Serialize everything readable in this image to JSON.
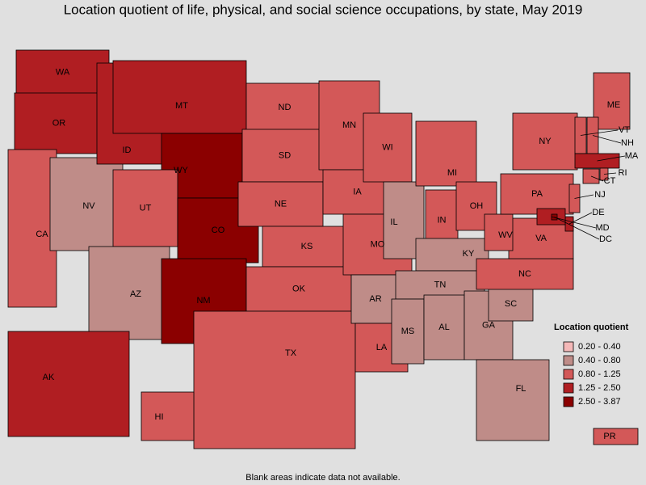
{
  "title": "Location quotient of life, physical, and social science occupations, by state, May 2019",
  "footnote": "Blank areas indicate data not available.",
  "legend": {
    "title": "Location quotient",
    "items": [
      {
        "label": "0.20 - 0.40",
        "color": "#f4b8b8"
      },
      {
        "label": "0.40 - 0.80",
        "color": "#bf8c88"
      },
      {
        "label": "0.80 - 1.25",
        "color": "#d35858"
      },
      {
        "label": "1.25 - 2.50",
        "color": "#b01e22"
      },
      {
        "label": "2.50 - 3.87",
        "color": "#8b0000"
      }
    ]
  },
  "states": [
    {
      "label": "WA",
      "range": "1.25 - 2.50"
    },
    {
      "label": "OR",
      "range": "1.25 - 2.50"
    },
    {
      "label": "CA",
      "range": "0.80 - 1.25"
    },
    {
      "label": "NV",
      "range": "0.40 - 0.80"
    },
    {
      "label": "ID",
      "range": "1.25 - 2.50"
    },
    {
      "label": "MT",
      "range": "1.25 - 2.50"
    },
    {
      "label": "WY",
      "range": "2.50 - 3.87"
    },
    {
      "label": "UT",
      "range": "0.80 - 1.25"
    },
    {
      "label": "AZ",
      "range": "0.40 - 0.80"
    },
    {
      "label": "CO",
      "range": "2.50 - 3.87"
    },
    {
      "label": "NM",
      "range": "2.50 - 3.87"
    },
    {
      "label": "ND",
      "range": "0.80 - 1.25"
    },
    {
      "label": "SD",
      "range": "0.80 - 1.25"
    },
    {
      "label": "NE",
      "range": "0.80 - 1.25"
    },
    {
      "label": "KS",
      "range": "0.80 - 1.25"
    },
    {
      "label": "OK",
      "range": "0.80 - 1.25"
    },
    {
      "label": "TX",
      "range": "0.80 - 1.25"
    },
    {
      "label": "MN",
      "range": "0.80 - 1.25"
    },
    {
      "label": "IA",
      "range": "0.80 - 1.25"
    },
    {
      "label": "MO",
      "range": "0.80 - 1.25"
    },
    {
      "label": "AR",
      "range": "0.40 - 0.80"
    },
    {
      "label": "LA",
      "range": "0.80 - 1.25"
    },
    {
      "label": "WI",
      "range": "0.80 - 1.25"
    },
    {
      "label": "IL",
      "range": "0.40 - 0.80"
    },
    {
      "label": "MI",
      "range": "0.80 - 1.25"
    },
    {
      "label": "IN",
      "range": "0.80 - 1.25"
    },
    {
      "label": "OH",
      "range": "0.80 - 1.25"
    },
    {
      "label": "KY",
      "range": "0.40 - 0.80"
    },
    {
      "label": "TN",
      "range": "0.40 - 0.80"
    },
    {
      "label": "MS",
      "range": "0.40 - 0.80"
    },
    {
      "label": "AL",
      "range": "0.40 - 0.80"
    },
    {
      "label": "GA",
      "range": "0.40 - 0.80"
    },
    {
      "label": "FL",
      "range": "0.40 - 0.80"
    },
    {
      "label": "SC",
      "range": "0.40 - 0.80"
    },
    {
      "label": "NC",
      "range": "0.80 - 1.25"
    },
    {
      "label": "VA",
      "range": "0.80 - 1.25"
    },
    {
      "label": "WV",
      "range": "0.80 - 1.25"
    },
    {
      "label": "PA",
      "range": "0.80 - 1.25"
    },
    {
      "label": "NY",
      "range": "0.80 - 1.25"
    },
    {
      "label": "ME",
      "range": "0.80 - 1.25"
    },
    {
      "label": "VT",
      "range": "0.80 - 1.25"
    },
    {
      "label": "NH",
      "range": "0.80 - 1.25"
    },
    {
      "label": "MA",
      "range": "1.25 - 2.50"
    },
    {
      "label": "CT",
      "range": "0.80 - 1.25"
    },
    {
      "label": "RI",
      "range": "0.80 - 1.25"
    },
    {
      "label": "NJ",
      "range": "0.80 - 1.25"
    },
    {
      "label": "DE",
      "range": "1.25 - 2.50"
    },
    {
      "label": "MD",
      "range": "1.25 - 2.50"
    },
    {
      "label": "DC",
      "range": "2.50 - 3.87"
    },
    {
      "label": "AK",
      "range": "1.25 - 2.50"
    },
    {
      "label": "HI",
      "range": "0.80 - 1.25"
    },
    {
      "label": "PR",
      "range": "0.80 - 1.25"
    }
  ]
}
